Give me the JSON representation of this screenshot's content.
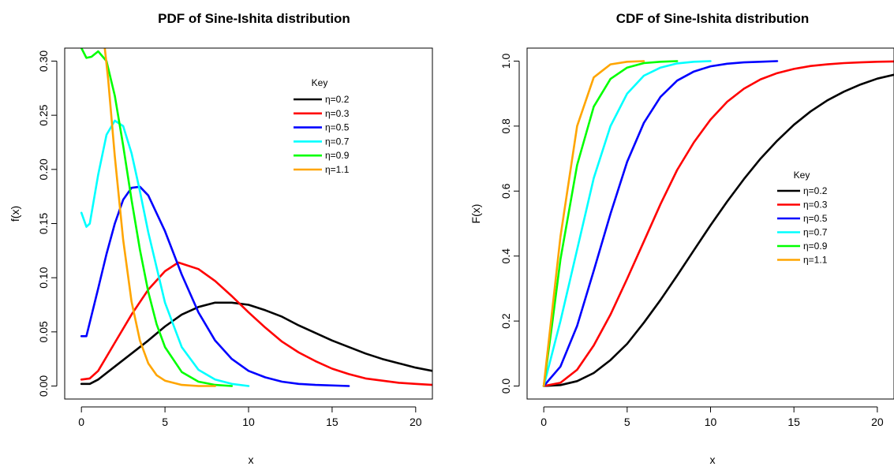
{
  "chart_data": [
    {
      "type": "line",
      "title": "PDF of Sine-Ishita distribution",
      "xlabel": "x",
      "ylabel": "f(x)",
      "xlim": [
        -1,
        21
      ],
      "ylim": [
        -0.012,
        0.312
      ],
      "xticks": [
        0,
        5,
        10,
        15,
        20
      ],
      "yticks": [
        0.0,
        0.05,
        0.1,
        0.15,
        0.2,
        0.25,
        0.3
      ],
      "ytick_labels": [
        "0.00",
        "0.05",
        "0.10",
        "0.15",
        "0.20",
        "0.25",
        "0.30"
      ],
      "grid": false,
      "legend": {
        "title": "Key",
        "placement": "top-right"
      },
      "series": [
        {
          "name": "η=0.2",
          "color": "#000000",
          "x": [
            0,
            0.5,
            1,
            2,
            3,
            4,
            5,
            6,
            7,
            8,
            9,
            10,
            11,
            12,
            13,
            14,
            15,
            16,
            17,
            18,
            19,
            20,
            21
          ],
          "y": [
            0.002,
            0.002,
            0.006,
            0.018,
            0.03,
            0.042,
            0.055,
            0.066,
            0.073,
            0.077,
            0.077,
            0.075,
            0.07,
            0.064,
            0.056,
            0.049,
            0.042,
            0.036,
            0.03,
            0.025,
            0.021,
            0.017,
            0.014
          ]
        },
        {
          "name": "η=0.3",
          "color": "#ff0000",
          "x": [
            0,
            0.5,
            1,
            2,
            3,
            4,
            5,
            5.8,
            7,
            8,
            9,
            10,
            11,
            12,
            13,
            14,
            15,
            16,
            17,
            18,
            19,
            20,
            21
          ],
          "y": [
            0.006,
            0.007,
            0.014,
            0.04,
            0.066,
            0.089,
            0.106,
            0.114,
            0.108,
            0.097,
            0.083,
            0.068,
            0.054,
            0.041,
            0.031,
            0.023,
            0.016,
            0.011,
            0.007,
            0.005,
            0.003,
            0.002,
            0.001
          ]
        },
        {
          "name": "η=0.5",
          "color": "#0000ff",
          "x": [
            0,
            0.3,
            1,
            1.5,
            2,
            2.5,
            3,
            3.5,
            4,
            5,
            6,
            7,
            8,
            9,
            10,
            11,
            12,
            13,
            14,
            16
          ],
          "y": [
            0.046,
            0.046,
            0.09,
            0.122,
            0.15,
            0.172,
            0.183,
            0.184,
            0.176,
            0.143,
            0.103,
            0.068,
            0.042,
            0.025,
            0.014,
            0.008,
            0.004,
            0.002,
            0.001,
            0.0
          ]
        },
        {
          "name": "η=0.7",
          "color": "#00ffff",
          "x": [
            0,
            0.3,
            0.5,
            1,
            1.5,
            2,
            2.5,
            3,
            3.5,
            4,
            5,
            6,
            7,
            8,
            9,
            10
          ],
          "y": [
            0.16,
            0.147,
            0.15,
            0.195,
            0.232,
            0.245,
            0.24,
            0.215,
            0.18,
            0.142,
            0.077,
            0.036,
            0.015,
            0.006,
            0.002,
            0.0
          ]
        },
        {
          "name": "η=0.9",
          "color": "#00ff00",
          "x": [
            0,
            0.3,
            0.6,
            1,
            1.5,
            2,
            2.5,
            3,
            3.5,
            4,
            4.5,
            5,
            6,
            7,
            8,
            9
          ],
          "y": [
            0.312,
            0.303,
            0.304,
            0.309,
            0.3,
            0.268,
            0.222,
            0.172,
            0.126,
            0.087,
            0.057,
            0.036,
            0.013,
            0.004,
            0.001,
            0.0
          ]
        },
        {
          "name": "η=1.1",
          "color": "#ffa500",
          "x": [
            1.4,
            1.6,
            2,
            2.5,
            3,
            3.5,
            4,
            4.5,
            5,
            6,
            7,
            8
          ],
          "y": [
            0.312,
            0.283,
            0.212,
            0.135,
            0.078,
            0.042,
            0.021,
            0.01,
            0.005,
            0.001,
            0.0,
            0.0
          ]
        }
      ]
    },
    {
      "type": "line",
      "title": "CDF of Sine-Ishita distribution",
      "xlabel": "x",
      "ylabel": "F(x)",
      "xlim": [
        -1,
        21
      ],
      "ylim": [
        -0.04,
        1.04
      ],
      "xticks": [
        0,
        5,
        10,
        15,
        20
      ],
      "yticks": [
        0.0,
        0.2,
        0.4,
        0.6,
        0.8,
        1.0
      ],
      "ytick_labels": [
        "0.0",
        "0.2",
        "0.4",
        "0.6",
        "0.8",
        "1.0"
      ],
      "grid": false,
      "legend": {
        "title": "Key",
        "placement": "right"
      },
      "series": [
        {
          "name": "η=0.2",
          "color": "#000000",
          "x": [
            0,
            1,
            2,
            3,
            4,
            5,
            6,
            7,
            8,
            9,
            10,
            11,
            12,
            13,
            14,
            15,
            16,
            17,
            18,
            19,
            20,
            21
          ],
          "y": [
            0.0,
            0.003,
            0.015,
            0.04,
            0.08,
            0.13,
            0.195,
            0.265,
            0.34,
            0.418,
            0.495,
            0.568,
            0.637,
            0.7,
            0.755,
            0.804,
            0.845,
            0.879,
            0.906,
            0.928,
            0.946,
            0.958
          ]
        },
        {
          "name": "η=0.3",
          "color": "#ff0000",
          "x": [
            0,
            1,
            2,
            3,
            4,
            5,
            6,
            7,
            8,
            9,
            10,
            11,
            12,
            13,
            14,
            15,
            16,
            17,
            18,
            19,
            20,
            21
          ],
          "y": [
            0.0,
            0.01,
            0.05,
            0.125,
            0.22,
            0.33,
            0.445,
            0.56,
            0.665,
            0.75,
            0.82,
            0.875,
            0.915,
            0.944,
            0.963,
            0.976,
            0.985,
            0.99,
            0.994,
            0.996,
            0.998,
            0.999
          ]
        },
        {
          "name": "η=0.5",
          "color": "#0000ff",
          "x": [
            0,
            1,
            2,
            3,
            4,
            5,
            6,
            7,
            8,
            9,
            10,
            11,
            12,
            13,
            14
          ],
          "y": [
            0.0,
            0.06,
            0.185,
            0.355,
            0.53,
            0.69,
            0.81,
            0.89,
            0.94,
            0.968,
            0.984,
            0.992,
            0.996,
            0.998,
            1.0
          ]
        },
        {
          "name": "η=0.7",
          "color": "#00ffff",
          "x": [
            0,
            1,
            2,
            3,
            4,
            5,
            6,
            7,
            8,
            9,
            10
          ],
          "y": [
            0.0,
            0.2,
            0.42,
            0.64,
            0.8,
            0.9,
            0.955,
            0.98,
            0.993,
            0.998,
            1.0
          ]
        },
        {
          "name": "η=0.9",
          "color": "#00ff00",
          "x": [
            0,
            0.5,
            1,
            2,
            3,
            4,
            5,
            6,
            7,
            8
          ],
          "y": [
            0.0,
            0.19,
            0.39,
            0.68,
            0.86,
            0.945,
            0.98,
            0.994,
            0.998,
            1.0
          ]
        },
        {
          "name": "η=1.1",
          "color": "#ffa500",
          "x": [
            0,
            0.5,
            1,
            2,
            3,
            4,
            5,
            6
          ],
          "y": [
            0.0,
            0.23,
            0.46,
            0.8,
            0.95,
            0.99,
            0.998,
            1.0
          ]
        }
      ]
    }
  ]
}
